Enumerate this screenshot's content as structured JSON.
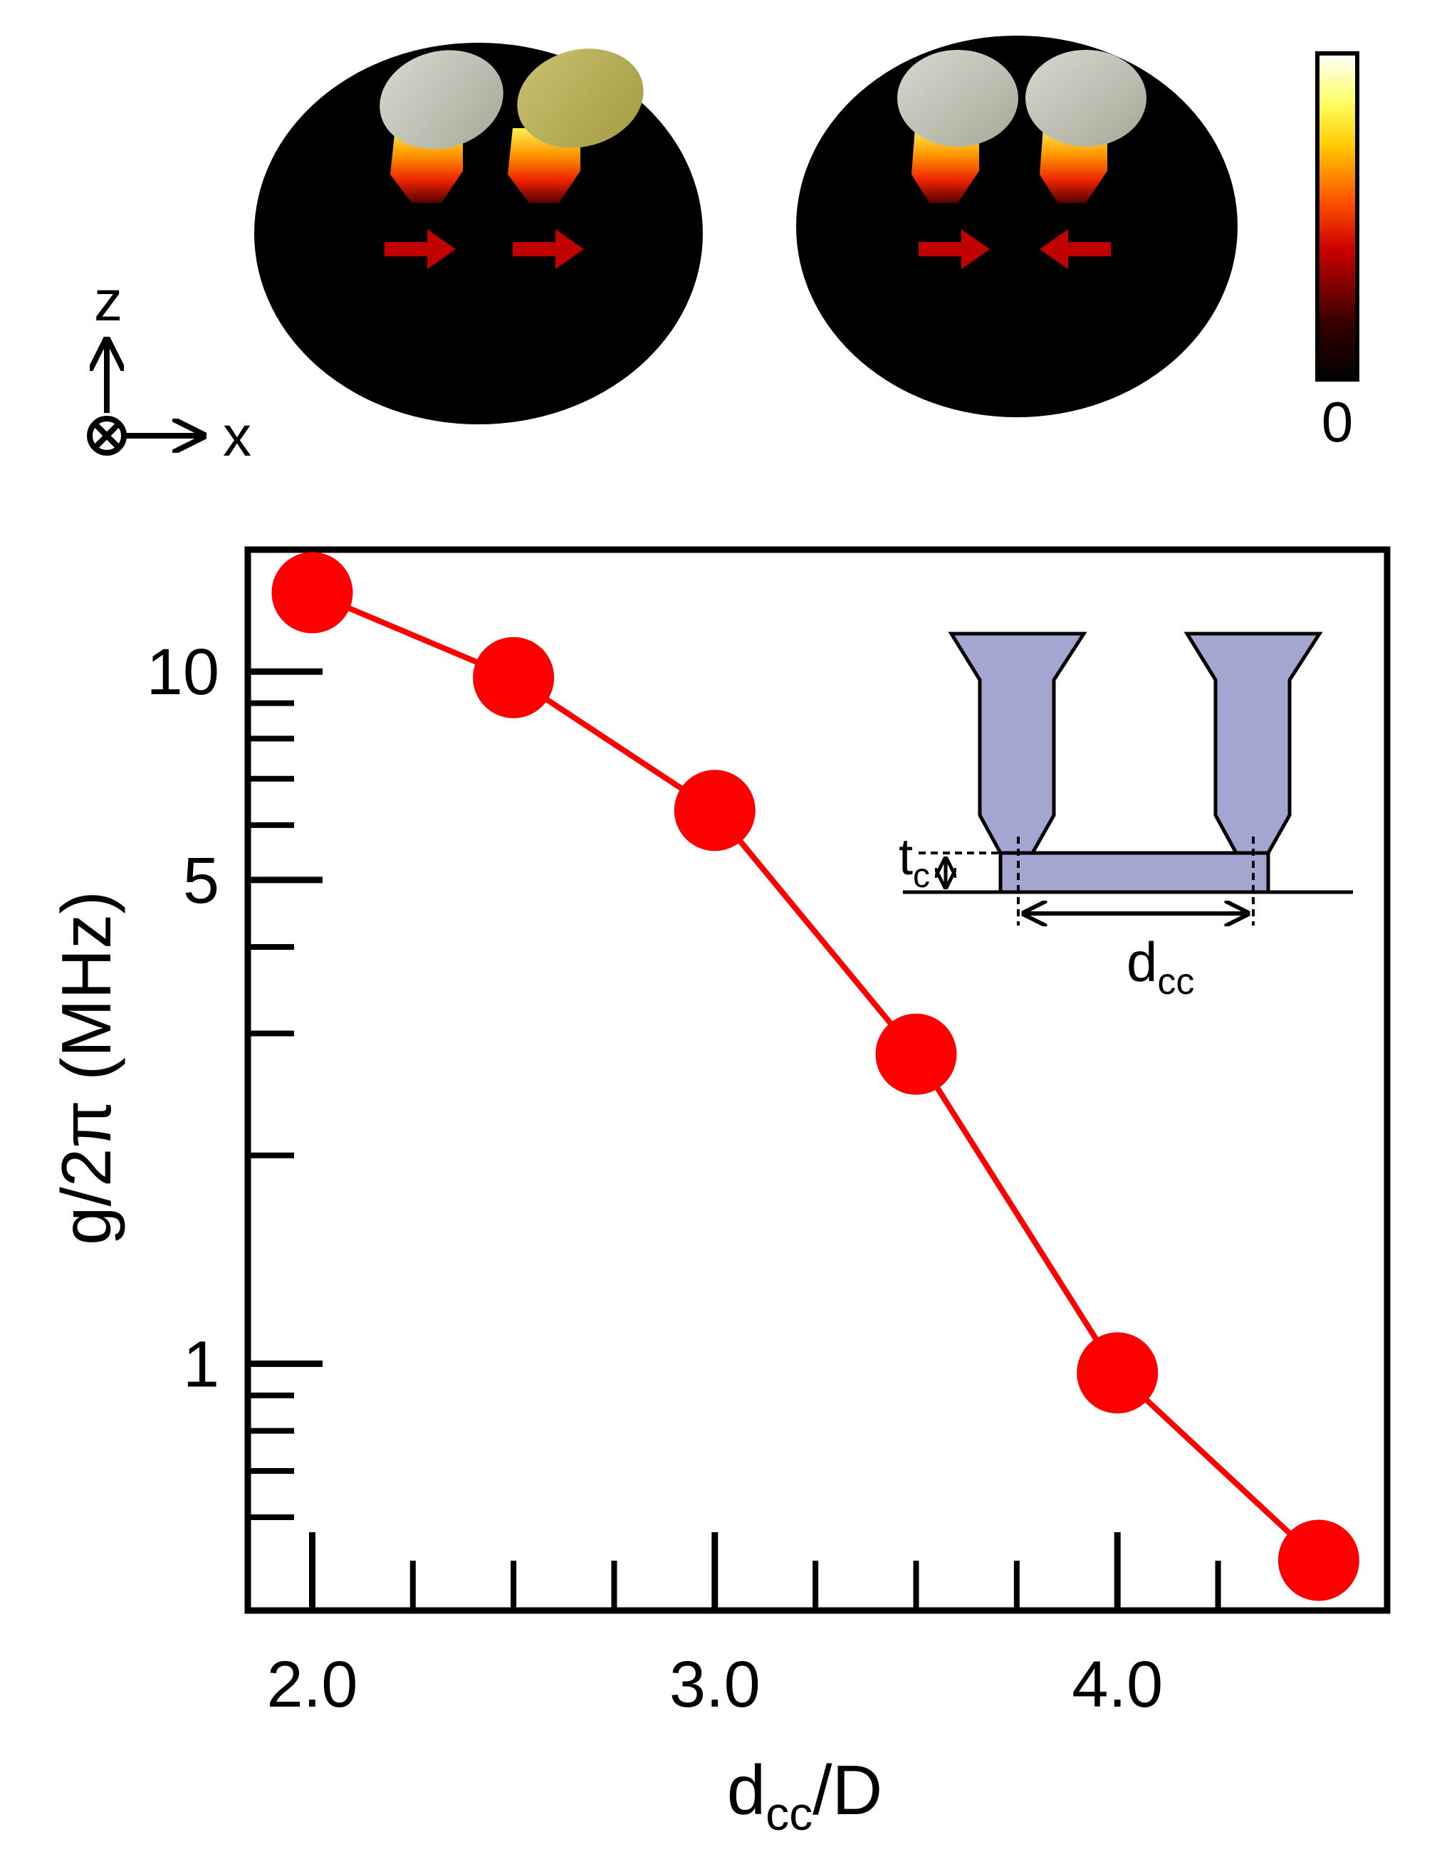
{
  "colorbar": {
    "min_label": "0",
    "gradient_colors": [
      "#000000",
      "#3a0000",
      "#cc0000",
      "#ff5500",
      "#ffcc00",
      "#ffff66",
      "#ffffff"
    ]
  },
  "axes_indicator": {
    "z_label": "z",
    "x_label": "x"
  },
  "mode_panels": [
    {
      "arrows": [
        "right",
        "right"
      ]
    },
    {
      "arrows": [
        "right",
        "left"
      ]
    }
  ],
  "inset": {
    "tc_label": "t",
    "tc_sub": "c",
    "dcc_label": "d",
    "dcc_sub": "cc",
    "fill_color": "#a4a6d2"
  },
  "chart_data": {
    "type": "line",
    "x": [
      2.0,
      2.5,
      3.0,
      3.5,
      4.0,
      4.5
    ],
    "y": [
      13.0,
      9.8,
      6.3,
      2.8,
      0.97,
      0.52
    ],
    "xlim": [
      1.84,
      4.67
    ],
    "ylim": [
      0.44,
      15.0
    ],
    "yscale": "log",
    "xticks": [
      2.0,
      3.0,
      4.0
    ],
    "xtick_labels": [
      "2.0",
      "3.0",
      "4.0"
    ],
    "xminor": [
      2.25,
      2.5,
      2.75,
      3.25,
      3.5,
      3.75,
      4.25
    ],
    "yticks": [
      1,
      5,
      10
    ],
    "ytick_labels": [
      "1",
      "5",
      "10"
    ],
    "yminor": [
      0.6,
      0.7,
      0.8,
      0.9,
      2,
      3,
      4,
      6,
      7,
      8,
      9
    ],
    "xlabel_main": "d",
    "xlabel_sub": "cc",
    "xlabel_tail": "/D",
    "ylabel": "g/2π (MHz)",
    "series_color": "#ff0000",
    "grid": false
  }
}
